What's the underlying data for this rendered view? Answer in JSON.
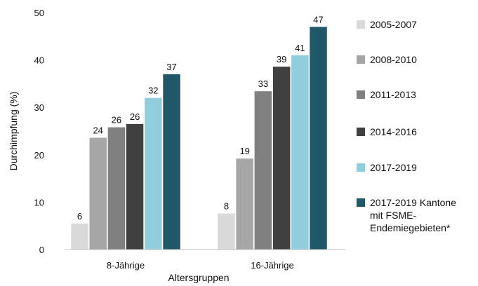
{
  "chart_data": {
    "type": "bar",
    "ylabel": "Durchimpfung (%)",
    "xlabel": "Altersgruppen",
    "ylim": [
      0,
      50
    ],
    "yticks": [
      0,
      10,
      20,
      30,
      40,
      50
    ],
    "grid": false,
    "legend_position": "right",
    "categories": [
      "8-Jährige",
      "16-Jährige"
    ],
    "series": [
      {
        "name": "2005-2007",
        "color": "#d9d9d9",
        "values": [
          5.5,
          7.6
        ],
        "labels": [
          "6",
          "8"
        ]
      },
      {
        "name": "2008-2010",
        "color": "#a6a6a6",
        "values": [
          23.6,
          19.2
        ],
        "labels": [
          "24",
          "19"
        ]
      },
      {
        "name": "2011-2013",
        "color": "#808080",
        "values": [
          25.8,
          33.4
        ],
        "labels": [
          "26",
          "33"
        ]
      },
      {
        "name": "2014-2016",
        "color": "#404040",
        "values": [
          26.5,
          38.6
        ],
        "labels": [
          "26",
          "39"
        ]
      },
      {
        "name": "2017-2019",
        "color": "#92cddc",
        "values": [
          32.0,
          41.0
        ],
        "labels": [
          "32",
          "41"
        ]
      },
      {
        "name": "2017-2019 Kantone mit FSME-Endemiegebieten*",
        "legend_lines": [
          "2017-2019 Kantone",
          "mit FSME-",
          "Endemiegebieten*"
        ],
        "color": "#215868",
        "values": [
          37.0,
          47.0
        ],
        "labels": [
          "37",
          "47"
        ]
      }
    ]
  }
}
